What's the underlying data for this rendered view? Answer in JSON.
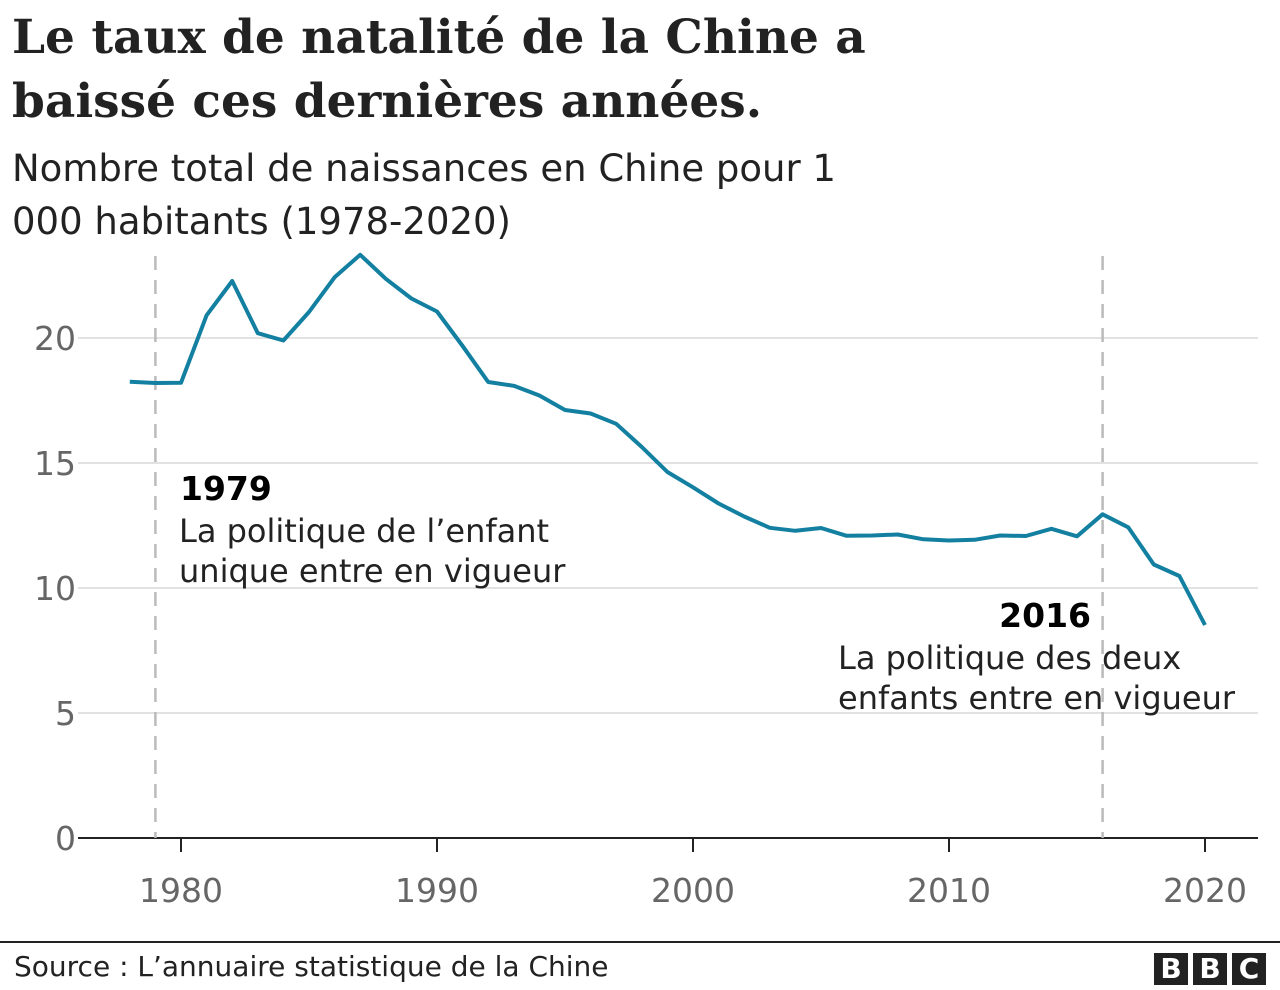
{
  "title": "Le taux de natalité de la Chine a baissé ces dernières années.",
  "subtitle": "Nombre total de naissances en Chine pour 1 000 habitants (1978-2020)",
  "source": "Source :  L’annuaire statistique de la Chine",
  "logo": "BBC",
  "chart_data": {
    "type": "line",
    "color": "#1380A1",
    "x": [
      1978,
      1979,
      1980,
      1981,
      1982,
      1983,
      1984,
      1985,
      1986,
      1987,
      1988,
      1989,
      1990,
      1991,
      1992,
      1993,
      1994,
      1995,
      1996,
      1997,
      1998,
      1999,
      2000,
      2001,
      2002,
      2003,
      2004,
      2005,
      2006,
      2007,
      2008,
      2009,
      2010,
      2011,
      2012,
      2013,
      2014,
      2015,
      2016,
      2017,
      2018,
      2019,
      2020
    ],
    "values": [
      18.25,
      18.2,
      18.21,
      20.91,
      22.28,
      20.19,
      19.9,
      21.04,
      22.43,
      23.33,
      22.37,
      21.58,
      21.06,
      19.68,
      18.24,
      18.09,
      17.7,
      17.12,
      16.98,
      16.57,
      15.64,
      14.64,
      14.03,
      13.38,
      12.86,
      12.41,
      12.29,
      12.4,
      12.09,
      12.1,
      12.14,
      11.95,
      11.9,
      11.93,
      12.1,
      12.08,
      12.37,
      12.07,
      12.95,
      12.43,
      10.94,
      10.48,
      8.52
    ],
    "xlim": [
      1976,
      2022
    ],
    "ylim": [
      0,
      24
    ],
    "xticks": [
      "1980",
      "1990",
      "2000",
      "2010",
      "2020"
    ],
    "yticks": [
      "0",
      "5",
      "10",
      "15",
      "20"
    ],
    "grid": true,
    "annotations": [
      {
        "x": 1979,
        "year": "1979",
        "lines": [
          "La politique de l’enfant",
          "unique entre en vigueur"
        ]
      },
      {
        "x": 2016,
        "year": "2016",
        "lines": [
          "La politique des deux",
          "enfants entre en vigueur"
        ]
      }
    ]
  }
}
